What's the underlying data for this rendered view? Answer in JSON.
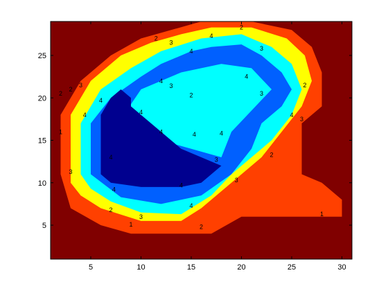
{
  "chart_data": {
    "type": "filled-contour",
    "xlim": [
      1,
      31
    ],
    "ylim": [
      1,
      29
    ],
    "xticks": [
      5,
      10,
      15,
      20,
      25,
      30
    ],
    "yticks": [
      5,
      10,
      15,
      20,
      25
    ],
    "xtick_labels": [
      "5",
      "10",
      "15",
      "20",
      "25",
      "30"
    ],
    "ytick_labels": [
      "5",
      "10",
      "15",
      "20",
      "25"
    ],
    "grid": false,
    "level_colors": {
      "0": "#800000",
      "1": "#ff4000",
      "2": "#ffff00",
      "3": "#00ffff",
      "4": "#0060ff",
      "5": "#00008f"
    },
    "regions": [
      {
        "level": 1,
        "points": [
          [
            2,
            11
          ],
          [
            2,
            18
          ],
          [
            4,
            22
          ],
          [
            7,
            25
          ],
          [
            10,
            27
          ],
          [
            13,
            28
          ],
          [
            16,
            29
          ],
          [
            21,
            29
          ],
          [
            25,
            28
          ],
          [
            27,
            26
          ],
          [
            28,
            23
          ],
          [
            28,
            19
          ],
          [
            26,
            17
          ],
          [
            26,
            11
          ],
          [
            28,
            10
          ],
          [
            30,
            8
          ],
          [
            30,
            6
          ],
          [
            27,
            6
          ],
          [
            20,
            6
          ],
          [
            17,
            4
          ],
          [
            13,
            4
          ],
          [
            9,
            4
          ],
          [
            6,
            5
          ],
          [
            3,
            7
          ]
        ]
      },
      {
        "level": 0,
        "points": [
          [
            10,
            20
          ],
          [
            13,
            21
          ],
          [
            17,
            21
          ],
          [
            20,
            20
          ],
          [
            18,
            18
          ],
          [
            16,
            17
          ],
          [
            12,
            17
          ]
        ]
      },
      {
        "level": 2,
        "points": [
          [
            3,
            10
          ],
          [
            3,
            18
          ],
          [
            5,
            22
          ],
          [
            8,
            25
          ],
          [
            11,
            26.5
          ],
          [
            14,
            27.5
          ],
          [
            17,
            28.3
          ],
          [
            21,
            28.3
          ],
          [
            24.5,
            27
          ],
          [
            26.3,
            25
          ],
          [
            27,
            22
          ],
          [
            26,
            19
          ],
          [
            24,
            16
          ],
          [
            22,
            13
          ],
          [
            19,
            10
          ],
          [
            16,
            7
          ],
          [
            14,
            5.5
          ],
          [
            10,
            5.5
          ],
          [
            6,
            7
          ],
          [
            4,
            8.5
          ]
        ]
      },
      {
        "level": 1,
        "points": [
          [
            10,
            19
          ],
          [
            12,
            21
          ],
          [
            16,
            22
          ],
          [
            20,
            21
          ],
          [
            21,
            19
          ],
          [
            19,
            16
          ],
          [
            17,
            14
          ],
          [
            14,
            15
          ],
          [
            12,
            17
          ]
        ]
      },
      {
        "level": 3,
        "points": [
          [
            4,
            11
          ],
          [
            4,
            17
          ],
          [
            6,
            21
          ],
          [
            9,
            23.5
          ],
          [
            12,
            25.5
          ],
          [
            16,
            27
          ],
          [
            20,
            27.5
          ],
          [
            23,
            26
          ],
          [
            25,
            24
          ],
          [
            26,
            21
          ],
          [
            25,
            18
          ],
          [
            23,
            15
          ],
          [
            21,
            13
          ],
          [
            19,
            11
          ],
          [
            17,
            8.5
          ],
          [
            14,
            6.3
          ],
          [
            10,
            6.5
          ],
          [
            7,
            7.8
          ],
          [
            5,
            9.3
          ]
        ]
      },
      {
        "level": 2,
        "points": [
          [
            9,
            18.5
          ],
          [
            11,
            21
          ],
          [
            15,
            22.5
          ],
          [
            20,
            22
          ],
          [
            22,
            19
          ],
          [
            20,
            16
          ],
          [
            18,
            12
          ],
          [
            15,
            14
          ],
          [
            12,
            16
          ]
        ]
      },
      {
        "level": 4,
        "points": [
          [
            5,
            11
          ],
          [
            5,
            17
          ],
          [
            7,
            20
          ],
          [
            10,
            22.5
          ],
          [
            12,
            24
          ],
          [
            15,
            25.5
          ],
          [
            17,
            26
          ],
          [
            20,
            26.3
          ],
          [
            22,
            25
          ],
          [
            24,
            23
          ],
          [
            25,
            21
          ],
          [
            24,
            19
          ],
          [
            22,
            17
          ],
          [
            21,
            14
          ],
          [
            19,
            11
          ],
          [
            16,
            8.5
          ],
          [
            12,
            7.5
          ],
          [
            8,
            8.3
          ]
        ]
      },
      {
        "level": 3,
        "points": [
          [
            8,
            17.5
          ],
          [
            10,
            21
          ],
          [
            14,
            23
          ],
          [
            18,
            24
          ],
          [
            21,
            23.5
          ],
          [
            23,
            21
          ],
          [
            21,
            18.5
          ],
          [
            19,
            16
          ],
          [
            18,
            13
          ],
          [
            15,
            14
          ],
          [
            12,
            15
          ]
        ]
      },
      {
        "level": 5,
        "points": [
          [
            6,
            11
          ],
          [
            6,
            18
          ],
          [
            7,
            20
          ],
          [
            8,
            21
          ],
          [
            9,
            20
          ],
          [
            9,
            19
          ],
          [
            10,
            18
          ],
          [
            11,
            17
          ],
          [
            12,
            16
          ],
          [
            13,
            15
          ],
          [
            14,
            14
          ],
          [
            16,
            13
          ],
          [
            18,
            12
          ],
          [
            16,
            10
          ],
          [
            14,
            9.5
          ],
          [
            12,
            9.5
          ],
          [
            10,
            9.5
          ],
          [
            7,
            10
          ]
        ]
      }
    ],
    "contour_labels": [
      {
        "text": "1",
        "x": 9,
        "y": 5.1
      },
      {
        "text": "1",
        "x": 28,
        "y": 6.3
      },
      {
        "text": "1",
        "x": 2,
        "y": 16
      },
      {
        "text": "2",
        "x": 2,
        "y": 20.5
      },
      {
        "text": "2",
        "x": 11.5,
        "y": 27
      },
      {
        "text": "2",
        "x": 20,
        "y": 28.3
      },
      {
        "text": "2",
        "x": 7,
        "y": 6.8
      },
      {
        "text": "2",
        "x": 23,
        "y": 13.3
      },
      {
        "text": "2",
        "x": 15,
        "y": 20.3
      },
      {
        "text": "2",
        "x": 26.3,
        "y": 21.5
      },
      {
        "text": "2",
        "x": 16,
        "y": 4.8
      },
      {
        "text": "2",
        "x": 3,
        "y": 21
      },
      {
        "text": "3",
        "x": 13,
        "y": 26.5
      },
      {
        "text": "3",
        "x": 3,
        "y": 11.3
      },
      {
        "text": "3",
        "x": 22,
        "y": 25.8
      },
      {
        "text": "3",
        "x": 10,
        "y": 6
      },
      {
        "text": "3",
        "x": 19.5,
        "y": 10.3
      },
      {
        "text": "3",
        "x": 13,
        "y": 21.4
      },
      {
        "text": "3",
        "x": 22,
        "y": 20.5
      },
      {
        "text": "3",
        "x": 26,
        "y": 17.5
      },
      {
        "text": "3",
        "x": 4,
        "y": 21.5
      },
      {
        "text": "3",
        "x": 17.5,
        "y": 12.7
      },
      {
        "text": "4",
        "x": 4.4,
        "y": 18
      },
      {
        "text": "4",
        "x": 15,
        "y": 25.5
      },
      {
        "text": "4",
        "x": 7,
        "y": 13
      },
      {
        "text": "4",
        "x": 15,
        "y": 7.3
      },
      {
        "text": "4",
        "x": 12,
        "y": 22
      },
      {
        "text": "4",
        "x": 20.5,
        "y": 22.5
      },
      {
        "text": "4",
        "x": 25,
        "y": 18
      },
      {
        "text": "4",
        "x": 6,
        "y": 19.7
      },
      {
        "text": "4",
        "x": 10,
        "y": 18.3
      },
      {
        "text": "4",
        "x": 15.3,
        "y": 15.7
      },
      {
        "text": "4",
        "x": 18,
        "y": 15.8
      },
      {
        "text": "4",
        "x": 14,
        "y": 9.7
      },
      {
        "text": "4",
        "x": 17,
        "y": 27.3
      },
      {
        "text": "4",
        "x": 7.3,
        "y": 9.2
      },
      {
        "text": "4",
        "x": 12,
        "y": 16
      }
    ]
  }
}
